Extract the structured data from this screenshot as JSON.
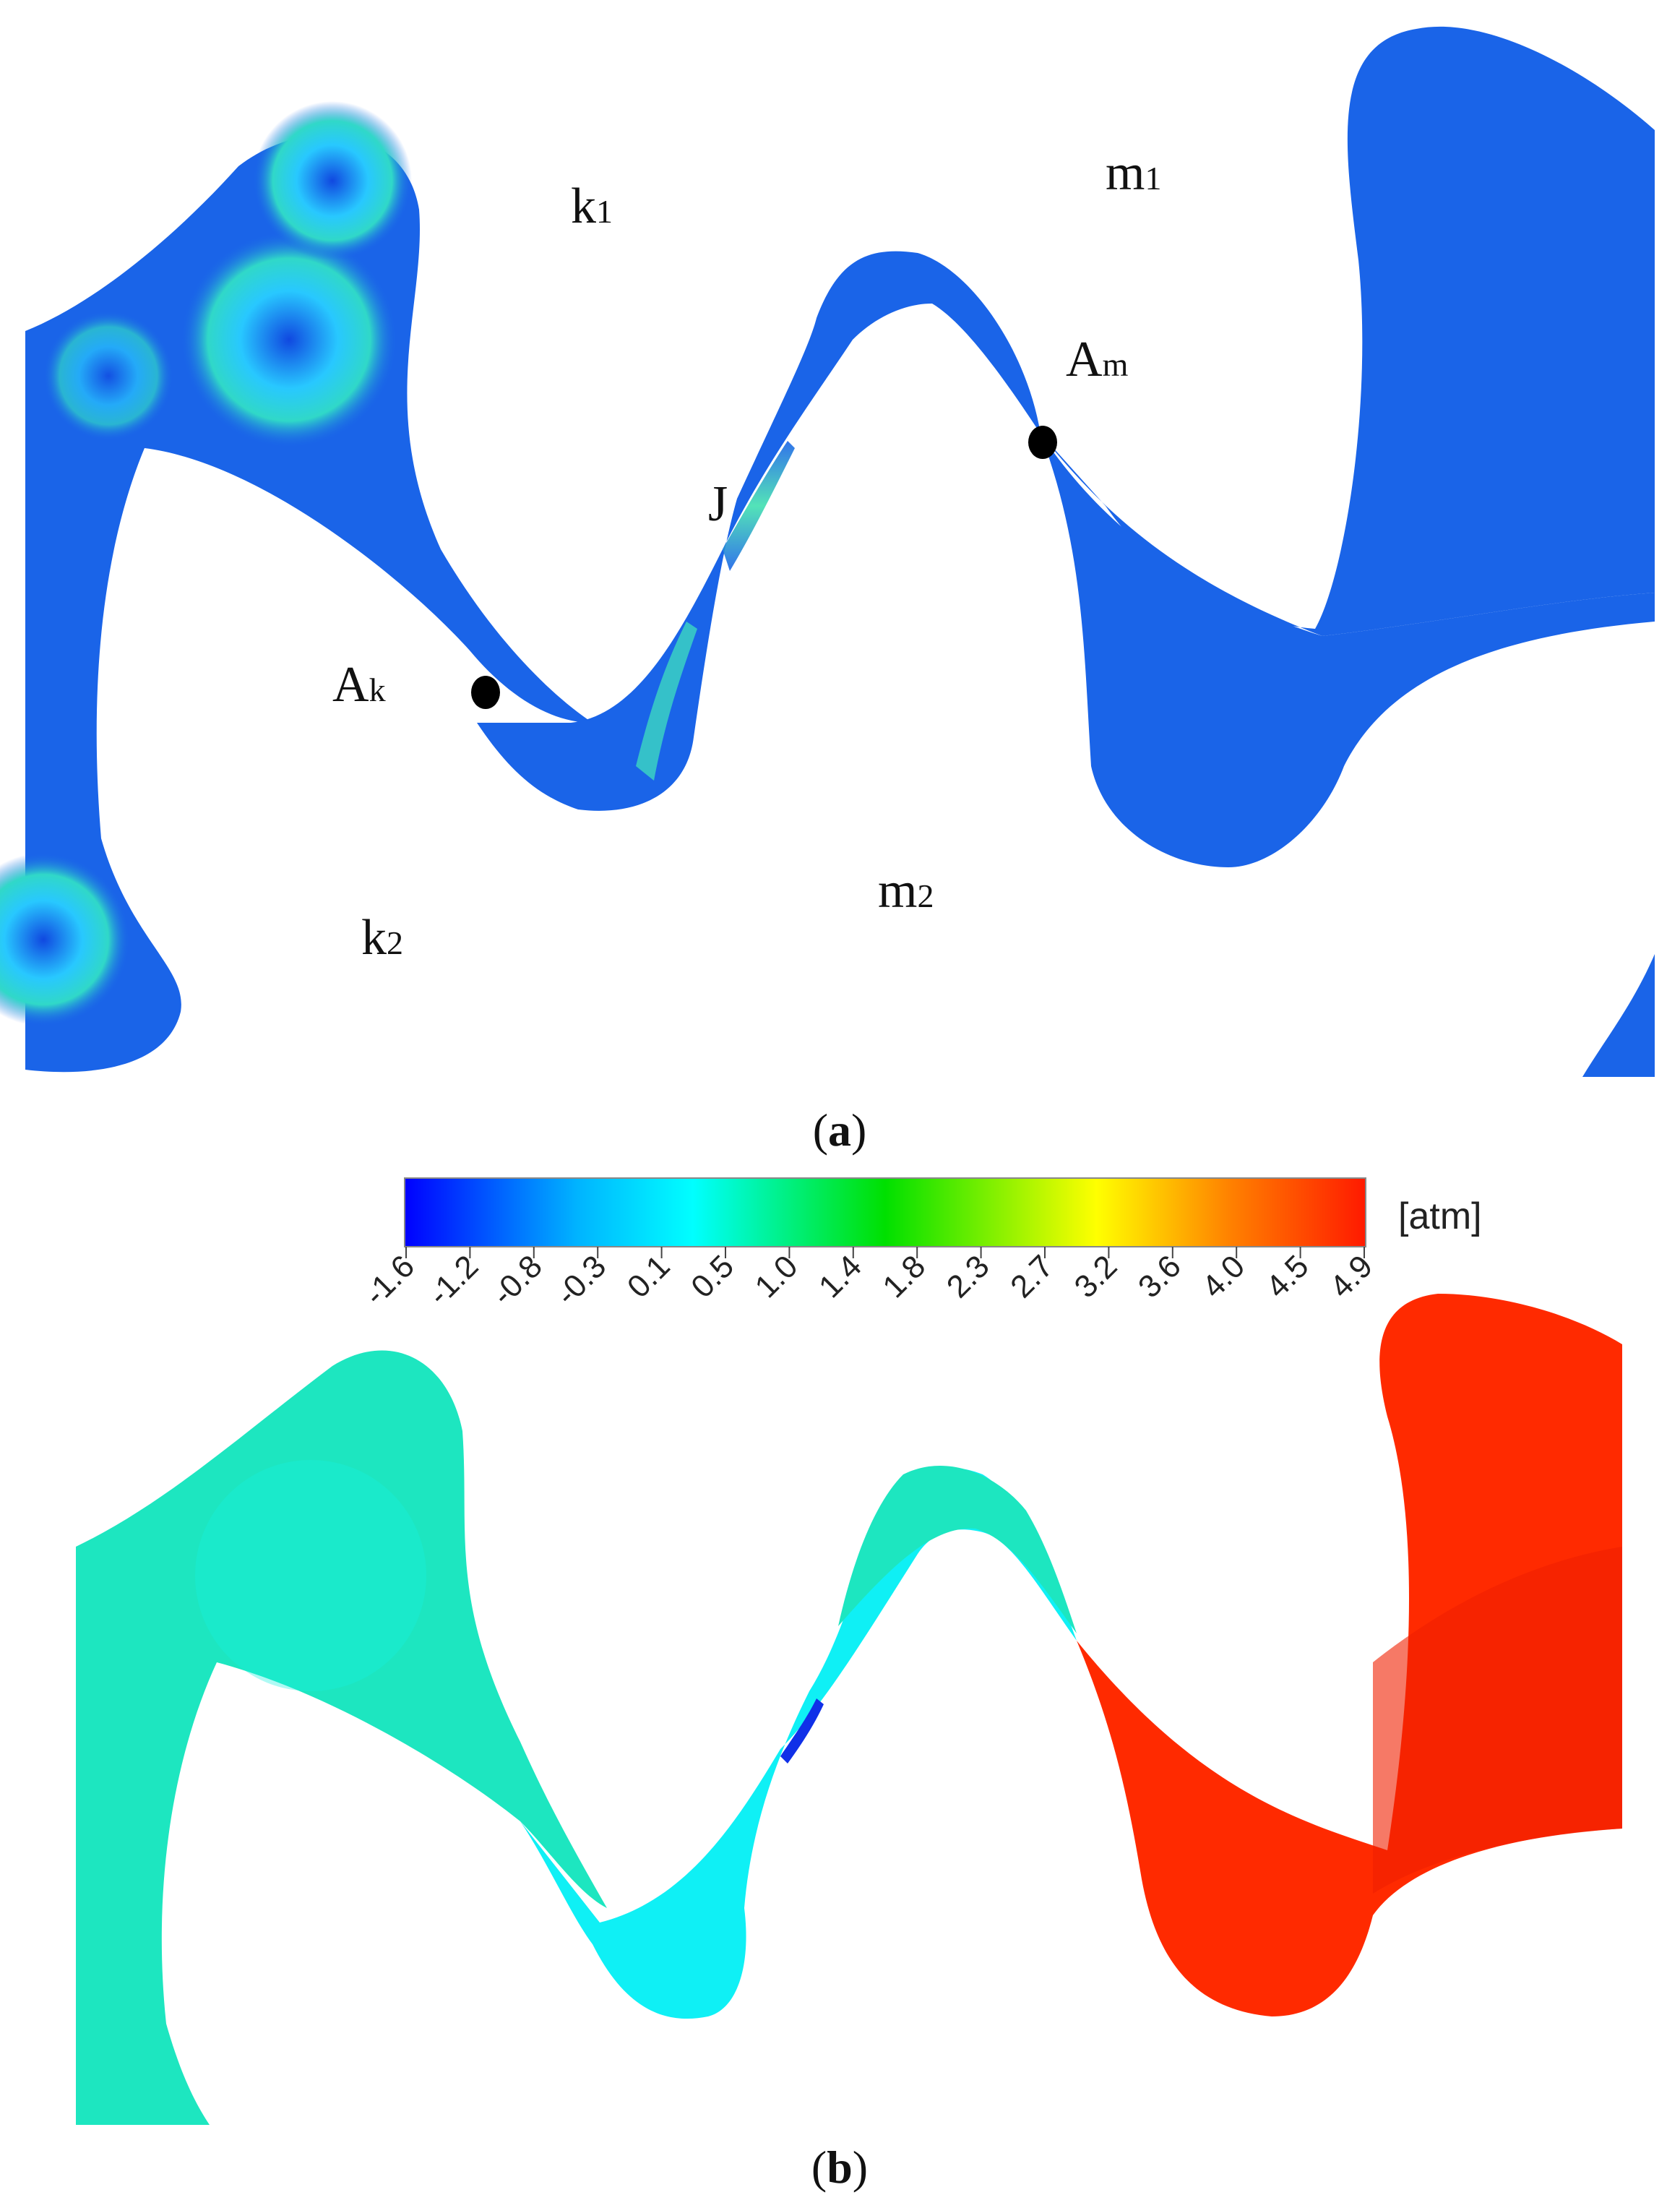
{
  "panel_a": {
    "caption_open": "(",
    "caption_letter": "a",
    "caption_close": ")",
    "labels": {
      "k1": "k",
      "k1_sub": "1",
      "k2": "k",
      "k2_sub": "2",
      "m1": "m",
      "m1_sub": "1",
      "m2": "m",
      "m2_sub": "2",
      "J": "J",
      "Ak": "A",
      "Ak_sub": "k",
      "Am": "A",
      "Am_sub": "m"
    }
  },
  "panel_b": {
    "caption_open": "(",
    "caption_letter": "b",
    "caption_close": ")"
  },
  "colorbar": {
    "unit": "[atm]",
    "ticks": [
      "-1.6",
      "-1.2",
      "-0.8",
      "-0.3",
      "0.1",
      "0.5",
      "1.0",
      "1.4",
      "1.8",
      "2.3",
      "2.7",
      "3.2",
      "3.6",
      "4.0",
      "4.5",
      "4.9"
    ],
    "colors": [
      "#0000ff",
      "#00b4ff",
      "#00ffff",
      "#00ff00",
      "#ffff00",
      "#ff8000",
      "#ff0000"
    ]
  },
  "colors": {
    "a_base": "#1a64e8",
    "a_light": "#2fb8ff",
    "b_cool": "#1de6c0",
    "b_cyan": "#0ff0f5",
    "b_hot": "#ff2a00"
  }
}
